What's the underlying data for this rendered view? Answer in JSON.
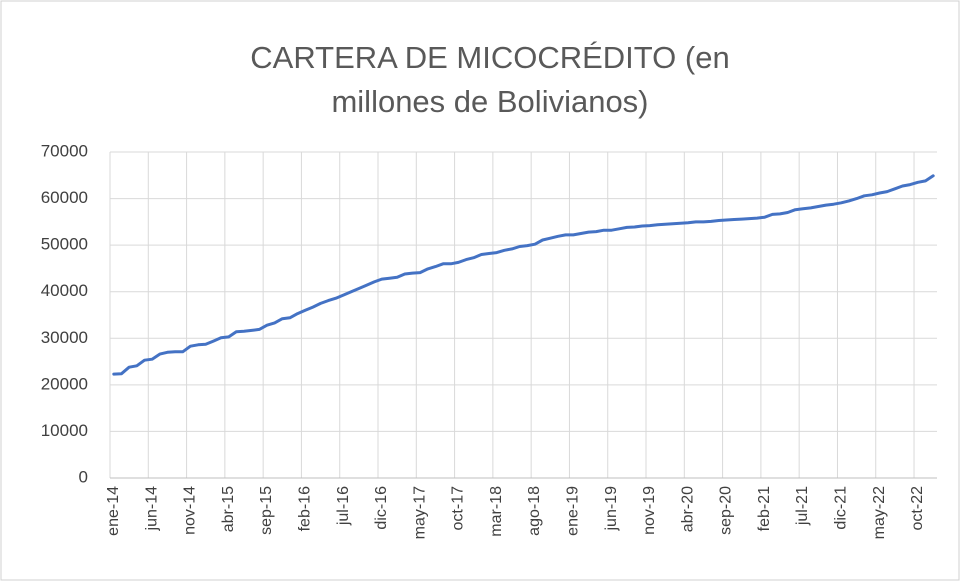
{
  "chart_data": {
    "type": "line",
    "title": "CARTERA DE MICOCRÉDITO (en millones de Bolivianos)",
    "categories": [
      "ene-14",
      null,
      null,
      null,
      null,
      "jun-14",
      null,
      null,
      null,
      null,
      "nov-14",
      null,
      null,
      null,
      null,
      "abr-15",
      null,
      null,
      null,
      null,
      "sep-15",
      null,
      null,
      null,
      null,
      "feb-16",
      null,
      null,
      null,
      null,
      "jul-16",
      null,
      null,
      null,
      null,
      "dic-16",
      null,
      null,
      null,
      null,
      "may-17",
      null,
      null,
      null,
      null,
      "oct-17",
      null,
      null,
      null,
      null,
      "mar-18",
      null,
      null,
      null,
      null,
      "ago-18",
      null,
      null,
      null,
      null,
      "ene-19",
      null,
      null,
      null,
      null,
      "jun-19",
      null,
      null,
      null,
      null,
      "nov-19",
      null,
      null,
      null,
      null,
      "abr-20",
      null,
      null,
      null,
      null,
      "sep-20",
      null,
      null,
      null,
      null,
      "feb-21",
      null,
      null,
      null,
      null,
      "jul-21",
      null,
      null,
      null,
      null,
      "dic-21",
      null,
      null,
      null,
      null,
      "may-22",
      null,
      null,
      null,
      null,
      "oct-22",
      null,
      null
    ],
    "series": [
      {
        "color": "#4472c4",
        "values": [
          22300,
          22400,
          23800,
          24100,
          25300,
          25500,
          26600,
          27000,
          27100,
          27100,
          28300,
          28600,
          28700,
          29400,
          30100,
          30300,
          31400,
          31500,
          31700,
          31900,
          32800,
          33300,
          34200,
          34400,
          35300,
          36000,
          36700,
          37500,
          38100,
          38600,
          39300,
          40000,
          40700,
          41400,
          42100,
          42700,
          42900,
          43100,
          43800,
          44000,
          44100,
          44900,
          45400,
          46000,
          46000,
          46300,
          46900,
          47300,
          48000,
          48200,
          48400,
          48900,
          49200,
          49700,
          49900,
          50200,
          51100,
          51500,
          51900,
          52200,
          52200,
          52500,
          52800,
          52900,
          53200,
          53200,
          53500,
          53800,
          53900,
          54100,
          54200,
          54400,
          54500,
          54600,
          54700,
          54800,
          55000,
          55000,
          55100,
          55300,
          55400,
          55500,
          55600,
          55700,
          55800,
          56000,
          56600,
          56700,
          57000,
          57600,
          57800,
          58000,
          58300,
          58600,
          58800,
          59100,
          59500,
          60000,
          60600,
          60800,
          61200,
          61500,
          62100,
          62700,
          63000,
          63500,
          63800,
          64900
        ]
      }
    ],
    "ylim": [
      0,
      70000
    ],
    "yticks": [
      0,
      10000,
      20000,
      30000,
      40000,
      50000,
      60000,
      70000
    ],
    "grid": true
  }
}
